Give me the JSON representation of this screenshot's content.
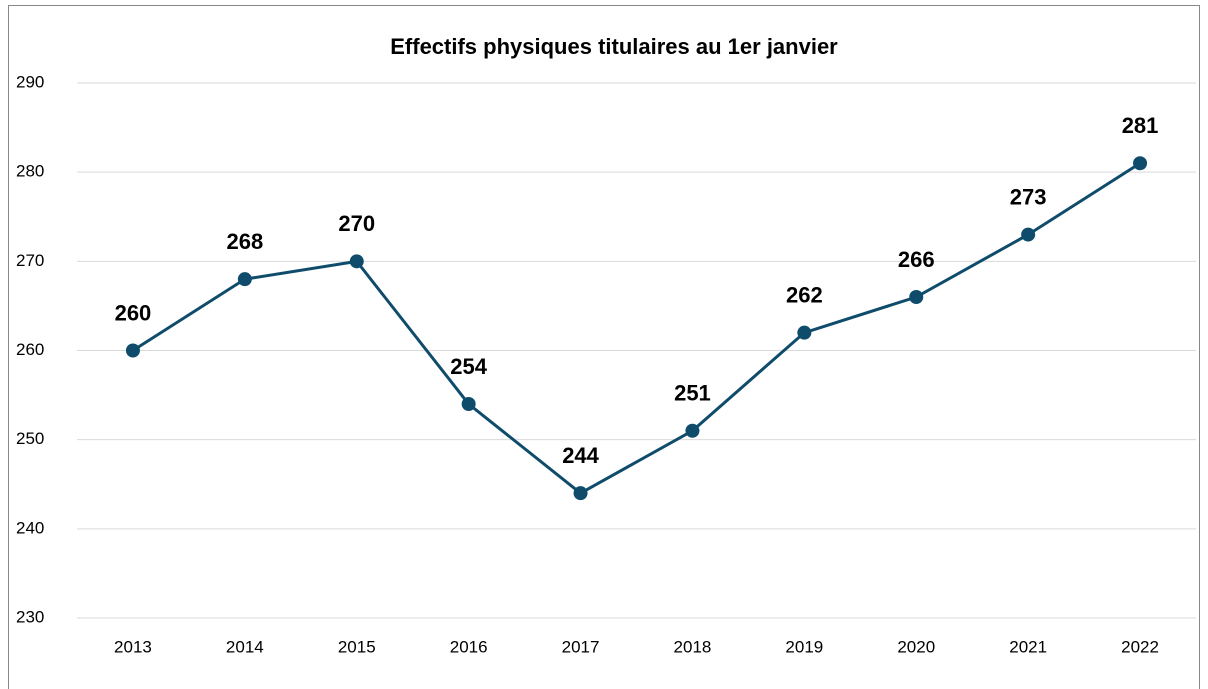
{
  "chart_data": {
    "type": "line",
    "title": "Effectifs physiques titulaires au 1er janvier",
    "categories": [
      "2013",
      "2014",
      "2015",
      "2016",
      "2017",
      "2018",
      "2019",
      "2020",
      "2021",
      "2022"
    ],
    "values": [
      260,
      268,
      270,
      254,
      244,
      251,
      262,
      266,
      273,
      281
    ],
    "color": "#0f4c6b",
    "ylim": [
      230,
      290
    ],
    "yticks": [
      230,
      240,
      250,
      260,
      270,
      280,
      290
    ],
    "grid": true
  }
}
